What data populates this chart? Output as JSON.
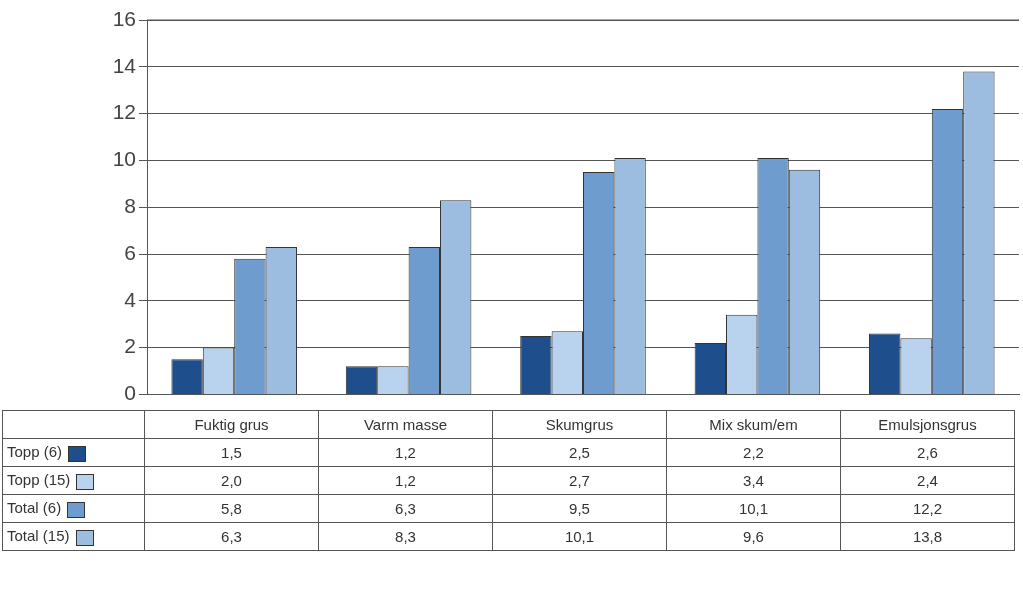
{
  "chart_data": {
    "type": "bar",
    "categories": [
      "Fuktig grus",
      "Varm masse",
      "Skumgrus",
      "Mix skum/em",
      "Emulsjonsgrus"
    ],
    "series": [
      {
        "name": "Topp (6)",
        "color": "#1f4e8c",
        "values": [
          1.5,
          1.2,
          2.5,
          2.2,
          2.6
        ],
        "value_labels": [
          "1,5",
          "1,2",
          "2,5",
          "2,2",
          "2,6"
        ]
      },
      {
        "name": "Topp (15)",
        "color": "#b9d3ee",
        "values": [
          2.0,
          1.2,
          2.7,
          3.4,
          2.4
        ],
        "value_labels": [
          "2,0",
          "1,2",
          "2,7",
          "3,4",
          "2,4"
        ]
      },
      {
        "name": "Total (6)",
        "color": "#6f9ccf",
        "values": [
          5.8,
          6.3,
          9.5,
          10.1,
          12.2
        ],
        "value_labels": [
          "5,8",
          "6,3",
          "9,5",
          "10,1",
          "12,2"
        ]
      },
      {
        "name": "Total (15)",
        "color": "#9dbde0",
        "values": [
          6.3,
          8.3,
          10.1,
          9.6,
          13.8
        ],
        "value_labels": [
          "6,3",
          "8,3",
          "10,1",
          "9,6",
          "13,8"
        ]
      }
    ],
    "ylim": [
      0,
      16
    ],
    "yticks": [
      0,
      2,
      4,
      6,
      8,
      10,
      12,
      14,
      16
    ],
    "grid": "y",
    "legend": "bottom"
  }
}
